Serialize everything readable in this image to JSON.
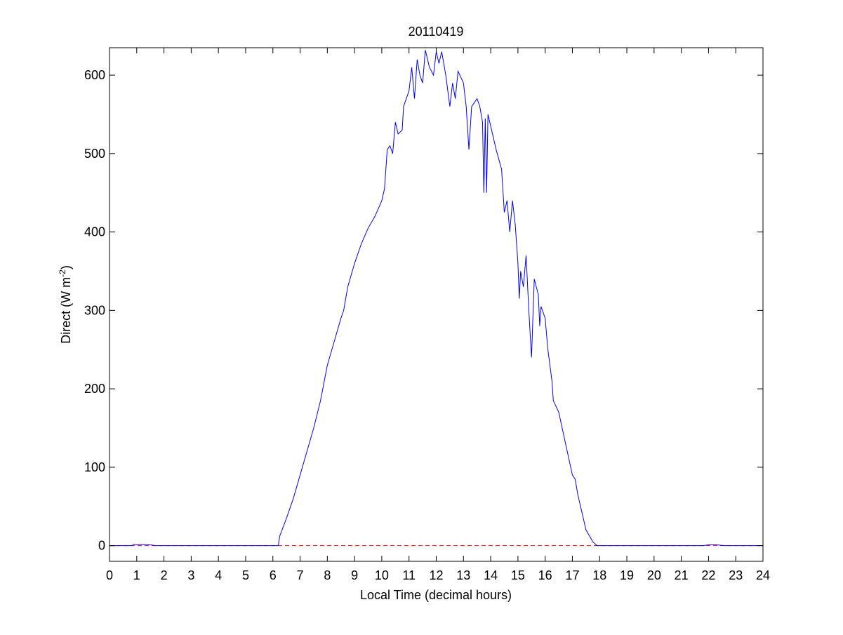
{
  "chart_data": {
    "type": "line",
    "title": "20110419",
    "xlabel": "Local Time (decimal hours)",
    "ylabel": {
      "text": "Direct (W m",
      "superscript": "-2",
      "suffix": ")"
    },
    "series": [
      {
        "name": "Direct",
        "color": "#0000ff",
        "x": [
          0,
          0.8,
          0.9,
          1.0,
          1.2,
          1.5,
          1.7,
          6.2,
          6.25,
          6.5,
          6.75,
          7.0,
          7.25,
          7.5,
          7.75,
          8.0,
          8.25,
          8.5,
          8.6,
          8.75,
          9.0,
          9.25,
          9.5,
          9.75,
          10.0,
          10.1,
          10.2,
          10.3,
          10.4,
          10.5,
          10.6,
          10.75,
          10.8,
          11.0,
          11.1,
          11.2,
          11.3,
          11.4,
          11.5,
          11.6,
          11.75,
          11.9,
          12.0,
          12.1,
          12.2,
          12.35,
          12.5,
          12.6,
          12.7,
          12.8,
          13.0,
          13.1,
          13.2,
          13.3,
          13.5,
          13.6,
          13.7,
          13.75,
          13.8,
          13.85,
          13.9,
          14.0,
          14.2,
          14.4,
          14.5,
          14.6,
          14.7,
          14.8,
          14.9,
          15.0,
          15.05,
          15.1,
          15.2,
          15.3,
          15.4,
          15.5,
          15.6,
          15.75,
          15.8,
          15.85,
          16.0,
          16.1,
          16.25,
          16.3,
          16.5,
          16.75,
          17.0,
          17.1,
          17.2,
          17.4,
          17.5,
          17.75,
          17.9,
          21.8,
          22.0,
          22.3,
          22.6,
          24
        ],
        "values": [
          0,
          0,
          1.5,
          1,
          1.5,
          1,
          0,
          0,
          12,
          35,
          60,
          90,
          120,
          150,
          185,
          230,
          260,
          290,
          300,
          330,
          360,
          385,
          405,
          420,
          440,
          455,
          505,
          510,
          500,
          540,
          525,
          530,
          560,
          580,
          610,
          570,
          620,
          600,
          590,
          632,
          610,
          600,
          630,
          615,
          630,
          600,
          560,
          590,
          570,
          605,
          590,
          560,
          505,
          560,
          570,
          560,
          540,
          450,
          545,
          450,
          550,
          535,
          505,
          480,
          425,
          440,
          400,
          440,
          410,
          360,
          315,
          350,
          330,
          370,
          300,
          240,
          340,
          320,
          280,
          305,
          290,
          250,
          210,
          185,
          170,
          130,
          90,
          85,
          65,
          35,
          20,
          5,
          0,
          0,
          1,
          1,
          0,
          0
        ]
      }
    ],
    "hline": {
      "value": 0,
      "color": "#ff0000",
      "style": "dashed"
    },
    "xlim": [
      0,
      24
    ],
    "xticks": [
      0,
      1,
      2,
      3,
      4,
      5,
      6,
      7,
      8,
      9,
      10,
      11,
      12,
      13,
      14,
      15,
      16,
      17,
      18,
      19,
      20,
      21,
      22,
      23,
      24
    ],
    "ylim": [
      -20,
      635
    ],
    "yticks": [
      0,
      100,
      200,
      300,
      400,
      500,
      600
    ]
  }
}
